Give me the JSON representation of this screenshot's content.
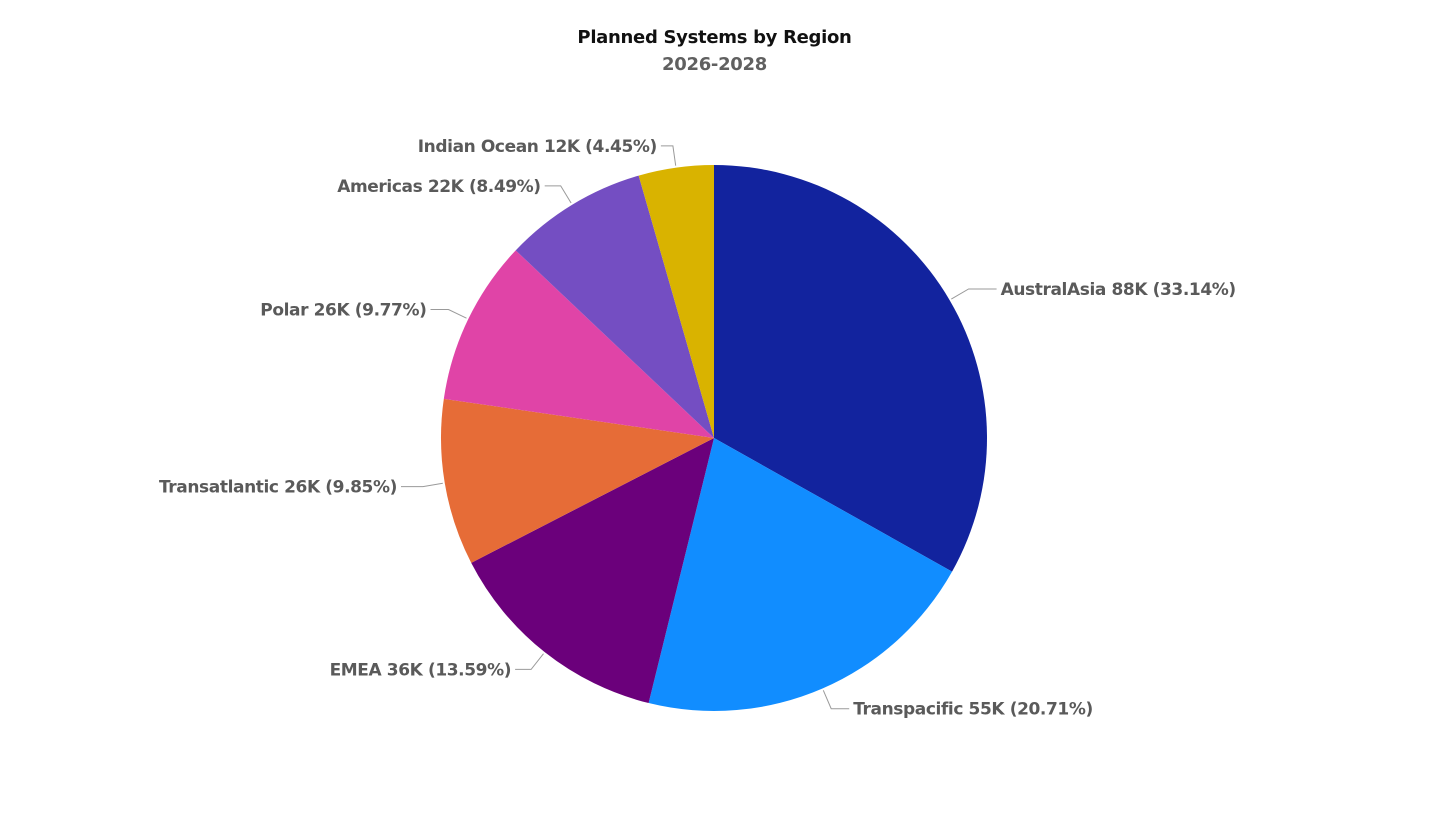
{
  "chart_data": {
    "type": "pie",
    "title": "Planned Systems by Region",
    "subtitle": "2026-2028",
    "start_angle_deg": 0,
    "direction": "clockwise",
    "slices": [
      {
        "name": "AustralAsia",
        "value_label": "88K",
        "value": 88,
        "percent": 33.14,
        "percent_label": "33.14%",
        "color": "#12239E"
      },
      {
        "name": "Transpacific",
        "value_label": "55K",
        "value": 55,
        "percent": 20.71,
        "percent_label": "20.71%",
        "color": "#118DFF"
      },
      {
        "name": "EMEA",
        "value_label": "36K",
        "value": 36,
        "percent": 13.59,
        "percent_label": "13.59%",
        "color": "#6B007B"
      },
      {
        "name": "Transatlantic",
        "value_label": "26K",
        "value": 26,
        "percent": 9.85,
        "percent_label": "9.85%",
        "color": "#E66C37"
      },
      {
        "name": "Polar",
        "value_label": "26K",
        "value": 26,
        "percent": 9.77,
        "percent_label": "9.77%",
        "color": "#E044A7"
      },
      {
        "name": "Americas",
        "value_label": "22K",
        "value": 22,
        "percent": 8.49,
        "percent_label": "8.49%",
        "color": "#744EC2"
      },
      {
        "name": "Indian Ocean",
        "value_label": "12K",
        "value": 12,
        "percent": 4.45,
        "percent_label": "4.45%",
        "color": "#D9B300"
      }
    ],
    "legend": "none",
    "data_labels": "outside"
  }
}
